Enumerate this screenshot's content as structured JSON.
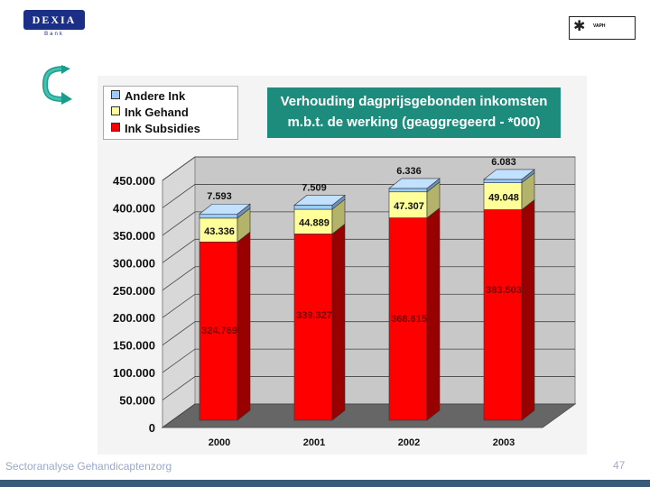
{
  "logos": {
    "dexia": "DEXIA",
    "dexia_sub": "Bank",
    "vaph_line1": "VAPH"
  },
  "footer": {
    "text": "Sectoranalyse Gehandicaptenzorg",
    "page": "47"
  },
  "colors": {
    "subsidies": "#ff0000",
    "gehand": "#ffff99",
    "andere": "#99ccff",
    "title_bg": "#1e8c7c"
  },
  "chart_data": {
    "type": "bar",
    "stacked": true,
    "title_line1": "Verhouding dagprijsgebonden inkomsten",
    "title_line2": "m.b.t.  de werking (geaggregeerd - *000)",
    "categories": [
      "2000",
      "2001",
      "2002",
      "2003"
    ],
    "series": [
      {
        "name": "Ink Subsidies",
        "values": [
          324769,
          339327,
          368615,
          383503
        ],
        "labels": [
          "324.769",
          "339.327",
          "368.615",
          "383.503"
        ]
      },
      {
        "name": "Ink Gehand",
        "values": [
          43336,
          44889,
          47307,
          49048
        ],
        "labels": [
          "43.336",
          "44.889",
          "47.307",
          "49.048"
        ]
      },
      {
        "name": "Andere Ink",
        "values": [
          7593,
          7509,
          6336,
          6083
        ],
        "labels": [
          "7.593",
          "7.509",
          "6.336",
          "6.083"
        ]
      }
    ],
    "legend_order": [
      "Andere Ink",
      "Ink Gehand",
      "Ink Subsidies"
    ],
    "ylim": [
      0,
      450000
    ],
    "yticks": [
      "0",
      "50.000",
      "100.000",
      "150.000",
      "200.000",
      "250.000",
      "300.000",
      "350.000",
      "400.000",
      "450.000"
    ],
    "grid": true,
    "legend_position": "top-left"
  }
}
